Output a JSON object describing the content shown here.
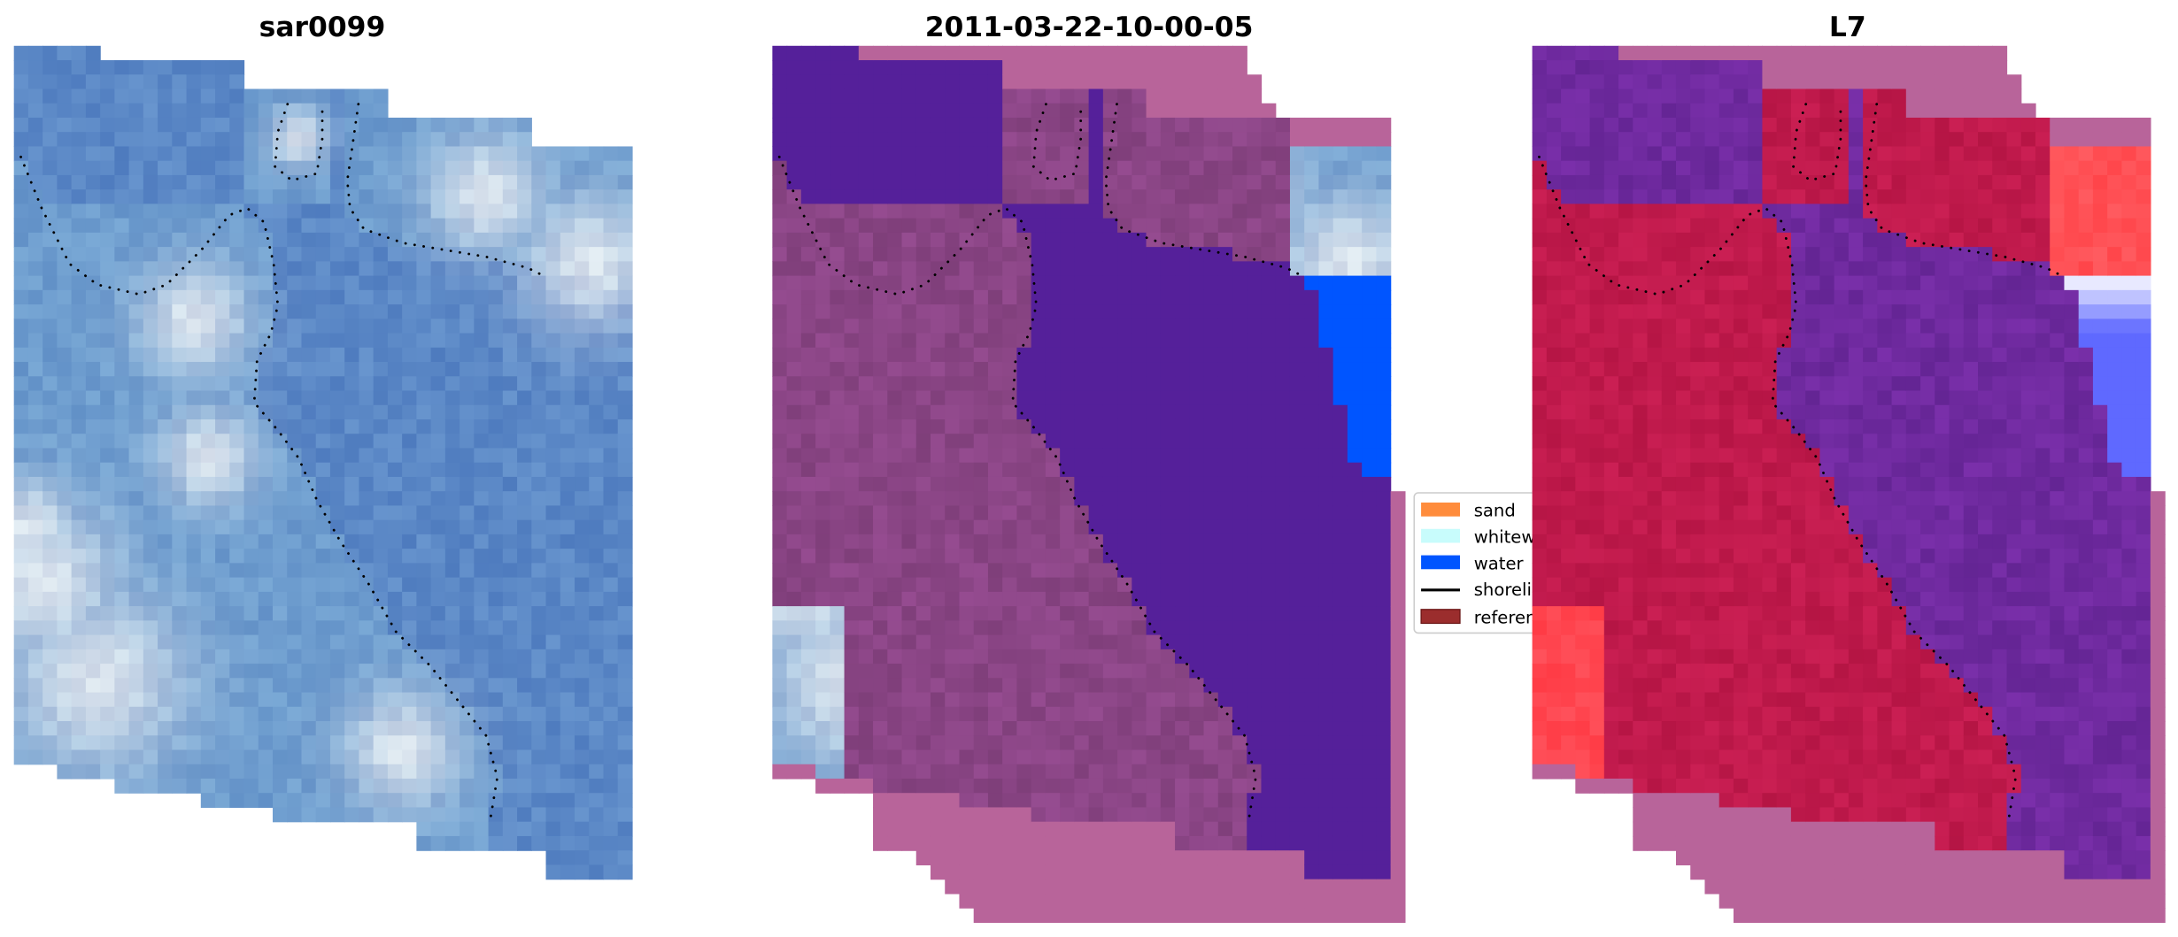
{
  "panels": [
    {
      "title": "sar0099"
    },
    {
      "title": "2011-03-22-10-00-05"
    },
    {
      "title": "L7"
    }
  ],
  "legend": {
    "items": [
      {
        "label": "sand",
        "color": "#ff8c3c",
        "kind": "patch"
      },
      {
        "label": "whitewater",
        "color": "#c8fcfc",
        "kind": "patch"
      },
      {
        "label": "water",
        "color": "#0055ff",
        "kind": "patch"
      },
      {
        "label": "shoreline",
        "color": "#000000",
        "kind": "line"
      },
      {
        "label": "reference shoreline",
        "color": "#9b2d2d",
        "kind": "patch"
      }
    ]
  },
  "colors": {
    "image_blue": "#5b88c6",
    "water_class_purple": "#55209a",
    "land_mauve": "#8a4585",
    "padding_pink": "#b8649a",
    "l7_land_red": "#c01a4c",
    "l7_water_purple": "#6f2a9f"
  }
}
